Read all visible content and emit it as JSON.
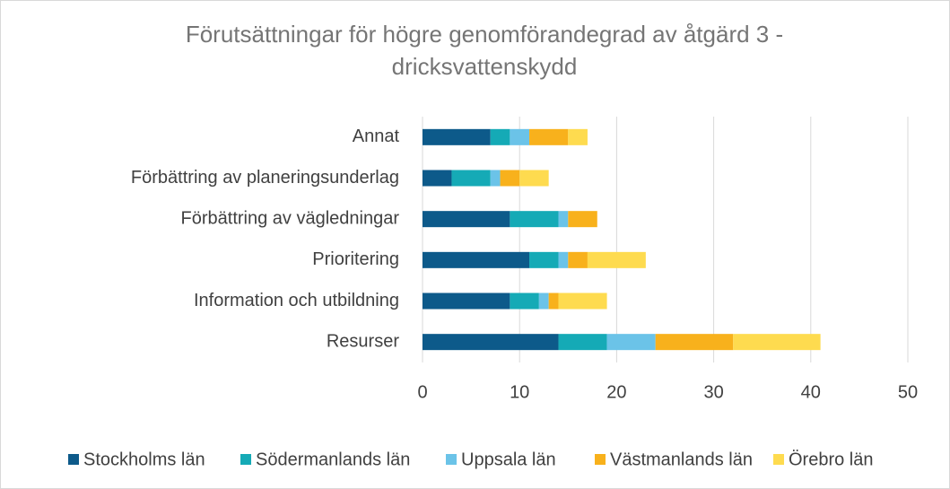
{
  "chart_data": {
    "type": "bar",
    "orientation": "horizontal",
    "stacked": true,
    "title": [
      "Förutsättningar för högre genomförandegrad av åtgärd 3 -",
      "dricksvattenskydd"
    ],
    "categories": [
      "Annat",
      "Förbättring av planeringsunderlag",
      "Förbättring av vägledningar",
      "Prioritering",
      "Information och utbildning",
      "Resurser"
    ],
    "series": [
      {
        "name": "Stockholms län",
        "color": "#0d5a8a",
        "values": [
          7,
          3,
          9,
          11,
          9,
          14
        ]
      },
      {
        "name": "Södermanlands län",
        "color": "#15aab6",
        "values": [
          2,
          4,
          5,
          3,
          3,
          5
        ]
      },
      {
        "name": "Uppsala län",
        "color": "#6bc3e8",
        "values": [
          2,
          1,
          1,
          1,
          1,
          5
        ]
      },
      {
        "name": "Västmanlands län",
        "color": "#f8b11c",
        "values": [
          4,
          2,
          3,
          2,
          1,
          8
        ]
      },
      {
        "name": "Örebro län",
        "color": "#fedb4f",
        "values": [
          2,
          3,
          0,
          6,
          5,
          9
        ]
      }
    ],
    "xlim": [
      0,
      50
    ],
    "xticks": [
      0,
      10,
      20,
      30,
      40,
      50
    ],
    "grid": true,
    "legend": "bottom"
  }
}
